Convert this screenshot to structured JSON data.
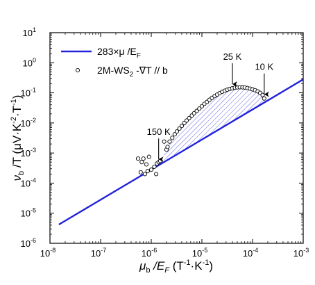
{
  "chart_data": {
    "type": "scatter",
    "x_scale": "log",
    "y_scale": "log",
    "xlim": [
      1e-08,
      0.001
    ],
    "ylim": [
      1e-06,
      10.0
    ],
    "x_ticks": [
      {
        "value": 1e-08,
        "base": "10",
        "exp": "-8"
      },
      {
        "value": 1e-07,
        "base": "10",
        "exp": "-7"
      },
      {
        "value": 1e-06,
        "base": "10",
        "exp": "-6"
      },
      {
        "value": 1e-05,
        "base": "10",
        "exp": "-5"
      },
      {
        "value": 0.0001,
        "base": "10",
        "exp": "-4"
      },
      {
        "value": 0.001,
        "base": "10",
        "exp": "-3"
      }
    ],
    "y_ticks": [
      {
        "value": 1e-06,
        "base": "10",
        "exp": "-6"
      },
      {
        "value": 1e-05,
        "base": "10",
        "exp": "-5"
      },
      {
        "value": 0.0001,
        "base": "10",
        "exp": "-4"
      },
      {
        "value": 0.001,
        "base": "10",
        "exp": "-3"
      },
      {
        "value": 0.01,
        "base": "10",
        "exp": "-2"
      },
      {
        "value": 0.1,
        "base": "10",
        "exp": "-1"
      },
      {
        "value": 1.0,
        "base": "10",
        "exp": "0"
      },
      {
        "value": 10.0,
        "base": "10",
        "exp": "1"
      }
    ],
    "xlabel": {
      "main": "μ",
      "sub": "b",
      "rest": " /E",
      "sub2": "F",
      "units": " (T",
      "u1": "-1",
      "units2": "·K",
      "u2": "-1",
      "units3": ")"
    },
    "ylabel": {
      "main": "ν",
      "sub": "b",
      "rest": " /T (μV·K",
      "e1": "-2",
      "mid": "·T",
      "e2": "-1",
      "end": ")"
    },
    "grid": false,
    "legend_position": "top-left",
    "series": [
      {
        "name": "283×μ /E",
        "name_sub": "F",
        "kind": "line",
        "color": "#2222dd",
        "x": [
          1.5e-08,
          0.001
        ],
        "y": [
          4.2e-06,
          0.28
        ]
      },
      {
        "name": "2M-WS",
        "name_sub": "2",
        "name_rest": " -∇T // b",
        "kind": "scatter",
        "marker": "open-circle",
        "color": "#000000",
        "x": [
          5.5e-07,
          6.2e-07,
          6.5e-07,
          7e-07,
          7.5e-07,
          8e-07,
          8.5e-07,
          9e-07,
          1e-06,
          1.15e-06,
          1.25e-06,
          1.3e-06,
          1.4e-06,
          1.5e-06,
          1.8e-06,
          2e-06,
          2.1e-06,
          2.3e-06,
          2.6e-06,
          2.9e-06,
          3.2e-06,
          3.6e-06,
          4e-06,
          4.5e-06,
          5e-06,
          5.6e-06,
          6.3e-06,
          7e-06,
          7.9e-06,
          8.9e-06,
          1e-05,
          1.12e-05,
          1.26e-05,
          1.41e-05,
          1.58e-05,
          1.78e-05,
          2e-05,
          2.24e-05,
          2.51e-05,
          2.82e-05,
          3.16e-05,
          3.55e-05,
          3.98e-05,
          4.47e-05,
          5e-05,
          5.6e-05,
          6.3e-05,
          7e-05,
          7.9e-05,
          8.9e-05,
          0.0001,
          0.000112,
          0.000126,
          0.000141,
          0.000158,
          0.00017
        ],
        "y": [
          0.00065,
          0.00023,
          0.0005,
          0.00065,
          0.0002,
          0.00042,
          0.00025,
          0.00075,
          0.00028,
          0.00035,
          0.0002,
          0.00045,
          0.0005,
          0.00055,
          0.0024,
          0.0013,
          0.0016,
          0.0024,
          0.0032,
          0.0042,
          0.0052,
          0.0065,
          0.008,
          0.01,
          0.012,
          0.0145,
          0.0175,
          0.021,
          0.025,
          0.03,
          0.036,
          0.043,
          0.05,
          0.059,
          0.068,
          0.078,
          0.088,
          0.098,
          0.108,
          0.118,
          0.127,
          0.135,
          0.142,
          0.148,
          0.152,
          0.154,
          0.153,
          0.15,
          0.145,
          0.138,
          0.13,
          0.122,
          0.112,
          0.1,
          0.085,
          0.065
        ]
      }
    ],
    "shaded_region": {
      "between": "2M-WS",
      "and": "283×μ /E",
      "x_range": [
        1.6e-06,
        0.00017
      ],
      "fill": "hatched",
      "color": "#2222dd"
    },
    "annotations": [
      {
        "text": "150 K",
        "x": 1.4e-06,
        "y": 0.00045
      },
      {
        "text": "25 K",
        "x": 4e-05,
        "y": 0.142
      },
      {
        "text": "10 K",
        "x": 0.00017,
        "y": 0.065
      }
    ]
  }
}
